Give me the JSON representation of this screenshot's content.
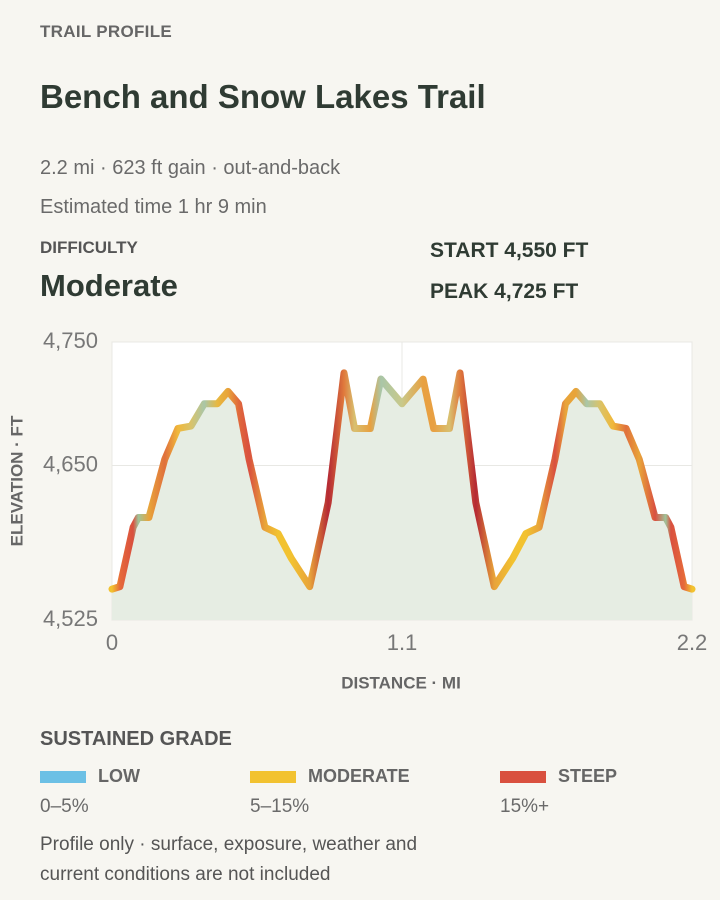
{
  "header": {
    "eyebrow": "TRAIL PROFILE",
    "title": "Bench and Snow Lakes Trail",
    "summary": "2.2 mi · 623 ft gain · out-and-back",
    "time": "Estimated time 1 hr 9 min"
  },
  "difficulty": {
    "label": "DIFFICULTY",
    "value": "Moderate"
  },
  "stats": [
    "START 4,550 FT",
    "PEAK 4,725 FT"
  ],
  "chart_data": {
    "type": "line",
    "x_label": "DISTANCE · MI",
    "y_label": "ELEVATION · FT",
    "x": [
      0,
      0.03,
      0.08,
      0.1,
      0.14,
      0.2,
      0.25,
      0.3,
      0.35,
      0.4,
      0.44,
      0.48,
      0.52,
      0.58,
      0.63,
      0.68,
      0.75,
      0.82,
      0.88,
      0.92,
      0.98,
      1.02,
      1.1,
      1.18,
      1.22,
      1.28,
      1.32,
      1.38,
      1.45,
      1.52,
      1.57,
      1.62,
      1.68,
      1.72,
      1.76,
      1.8,
      1.85,
      1.9,
      1.95,
      2.0,
      2.06,
      2.1,
      2.12,
      2.17,
      2.2
    ],
    "series": [
      {
        "values": [
          4550,
          4552,
          4600,
          4608,
          4608,
          4655,
          4680,
          4682,
          4700,
          4700,
          4710,
          4700,
          4655,
          4600,
          4595,
          4575,
          4552,
          4620,
          4725,
          4680,
          4680,
          4720,
          4700,
          4720,
          4680,
          4680,
          4725,
          4620,
          4552,
          4575,
          4595,
          4600,
          4655,
          4700,
          4710,
          4700,
          4700,
          4682,
          4680,
          4655,
          4608,
          4608,
          4600,
          4552,
          4550
        ],
        "point_colors": [
          "#f2c230",
          "#e66a3a",
          "#d9503f",
          "#9fc49a",
          "#e8a43a",
          "#e0703c",
          "#f0b83a",
          "#d9c36a",
          "#a9c6a8",
          "#e8b840",
          "#e8a43a",
          "#e06a3c",
          "#d9503f",
          "#e8a43a",
          "#f2c230",
          "#f2c230",
          "#e8a43a",
          "#b52a34",
          "#e07a3c",
          "#d8c070",
          "#e8a040",
          "#a9c6a8",
          "#c9c98a",
          "#e8a040",
          "#e8a043",
          "#d8c070",
          "#e07a3c",
          "#b52a34",
          "#e8a43a",
          "#f2c230",
          "#f2c230",
          "#e8a43a",
          "#d9503f",
          "#e8a43a",
          "#e8a43a",
          "#a9c6a8",
          "#d9c36a",
          "#f0b83a",
          "#e0703c",
          "#e8a43a",
          "#d9503f",
          "#9fc49a",
          "#d9503f",
          "#e66a3a",
          "#f2c230"
        ]
      }
    ],
    "xlim": [
      0,
      2.2
    ],
    "ylim": [
      4525,
      4750
    ],
    "xticks": [
      0,
      1.1,
      2.2
    ],
    "yticks": [
      {
        "value": 4525,
        "label": "4,525"
      },
      {
        "value": 4650,
        "label": "4,650"
      },
      {
        "value": 4750,
        "label": "4,750"
      }
    ],
    "grid": true,
    "area_color": "#e6ede3"
  },
  "legend": {
    "title": "SUSTAINED GRADE",
    "items": [
      {
        "name": "LOW",
        "range": "0–5%",
        "color": "#6cc0e5"
      },
      {
        "name": "MODERATE",
        "range": "5–15%",
        "color": "#f2c230"
      },
      {
        "name": "STEEP",
        "range": "15%+",
        "color": "#d9503f"
      }
    ]
  },
  "footnote": "Profile only · surface, exposure, weather and current conditions are not included"
}
